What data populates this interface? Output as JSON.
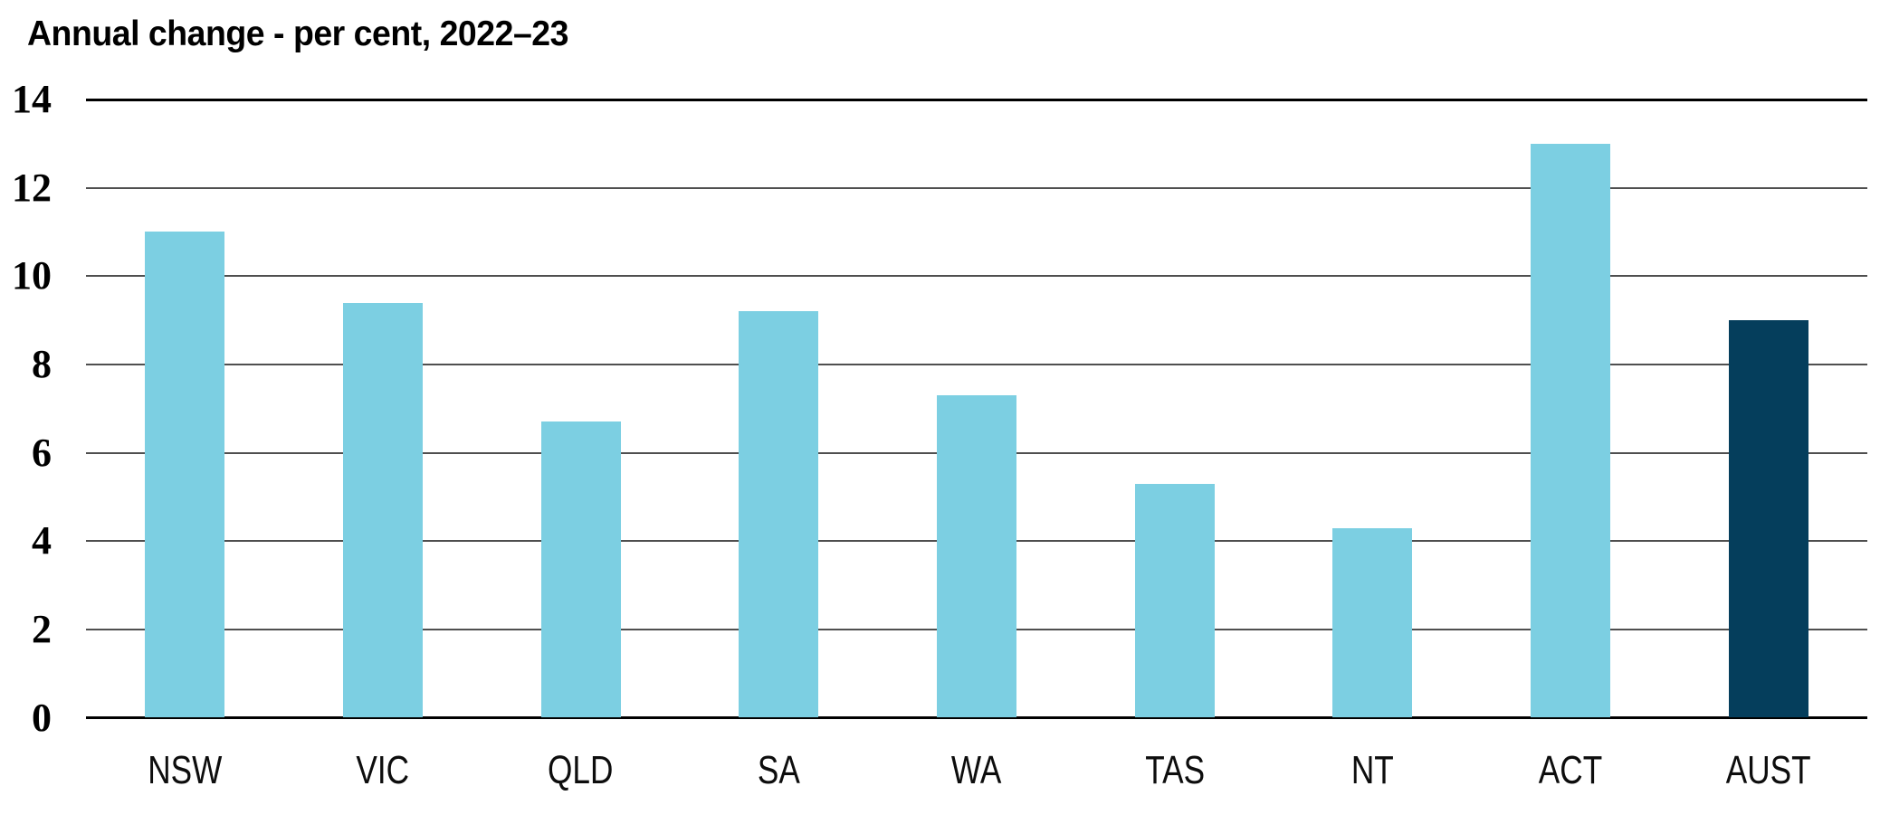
{
  "title": "Annual change - per cent, 2022–23",
  "chart_data": {
    "type": "bar",
    "title": "Annual change - per cent, 2022–23",
    "xlabel": "",
    "ylabel": "",
    "categories": [
      "NSW",
      "VIC",
      "QLD",
      "SA",
      "WA",
      "TAS",
      "NT",
      "ACT",
      "AUST"
    ],
    "values": [
      11.0,
      9.4,
      6.7,
      9.2,
      7.3,
      5.3,
      4.3,
      13.0,
      9.0
    ],
    "colors": [
      "#7CCFE2",
      "#7CCFE2",
      "#7CCFE2",
      "#7CCFE2",
      "#7CCFE2",
      "#7CCFE2",
      "#7CCFE2",
      "#7CCFE2",
      "#053E5C"
    ],
    "palette": {
      "state_bar": "#7CCFE2",
      "australia_bar": "#053E5C",
      "gridline": "#4F4F4F",
      "axis": "#000000"
    },
    "ylim": [
      0,
      14
    ],
    "yticks": [
      0,
      2,
      4,
      6,
      8,
      10,
      12,
      14
    ],
    "grid": true,
    "legend": "none",
    "highlight_category": "AUST"
  }
}
